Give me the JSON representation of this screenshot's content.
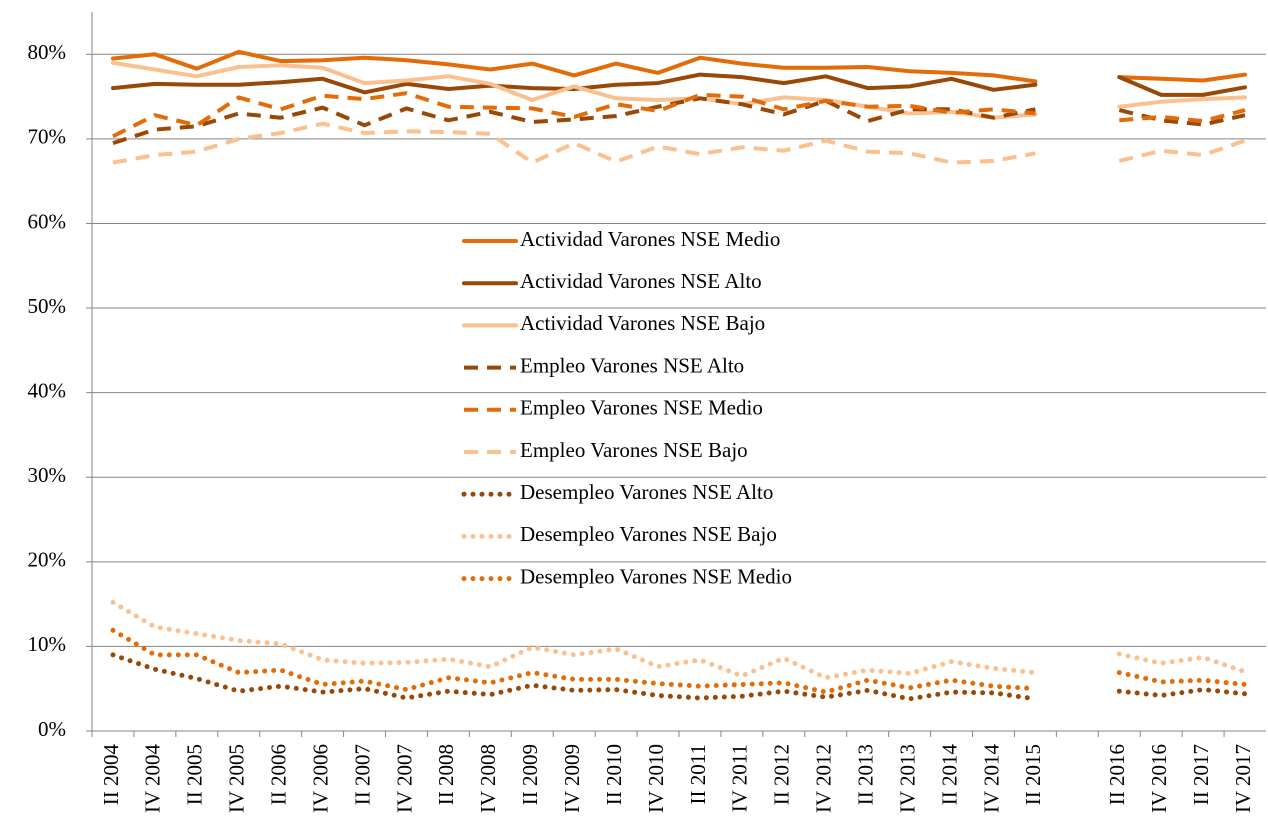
{
  "chart_data": {
    "type": "line",
    "categories": [
      "II 2004",
      "IV 2004",
      "II 2005",
      "IV 2005",
      "II 2006",
      "IV 2006",
      "II 2007",
      "IV 2007",
      "II 2008",
      "IV 2008",
      "II 2009",
      "IV 2009",
      "II 2010",
      "IV 2010",
      "II 2011",
      "IV 2011",
      "II 2012",
      "IV 2012",
      "II 2013",
      "IV 2013",
      "II 2014",
      "IV 2014",
      "II 2015",
      null,
      "II 2016",
      "IV 2016",
      "II 2017",
      "IV 2017"
    ],
    "series": [
      {
        "name": "Actividad Varones NSE Medio",
        "color": "#e36c09",
        "dash": "solid",
        "values": [
          79.5,
          80,
          78.3,
          80.3,
          79.2,
          79.3,
          79.6,
          79.3,
          78.8,
          78.2,
          78.9,
          77.5,
          78.9,
          77.8,
          79.6,
          78.9,
          78.4,
          78.4,
          78.5,
          78,
          77.8,
          77.5,
          76.8,
          null,
          77.3,
          77.1,
          76.9,
          77.6
        ]
      },
      {
        "name": "Actividad Varones NSE Alto",
        "color": "#984807",
        "dash": "solid",
        "values": [
          76,
          76.5,
          76.4,
          76.4,
          76.7,
          77.1,
          75.5,
          76.5,
          75.9,
          76.3,
          76,
          75.9,
          76.4,
          76.6,
          77.6,
          77.3,
          76.6,
          77.4,
          76,
          76.2,
          77.1,
          75.8,
          76.4,
          null,
          77.3,
          75.2,
          75.2,
          76.1
        ]
      },
      {
        "name": "Actividad Varones NSE Bajo",
        "color": "#fac08f",
        "dash": "solid",
        "values": [
          79,
          78.2,
          77.4,
          78.5,
          78.7,
          78.4,
          76.6,
          76.9,
          77.4,
          76.5,
          74.6,
          76.2,
          74.8,
          74.6,
          74.8,
          74.1,
          74.9,
          74.6,
          73.8,
          73,
          73.2,
          72.5,
          72.9,
          null,
          73.8,
          74.4,
          74.7,
          74.9
        ]
      },
      {
        "name": "Empleo Varones NSE Alto",
        "color": "#984807",
        "dash": "dashed",
        "values": [
          69.5,
          71.1,
          71.5,
          73,
          72.5,
          73.7,
          71.6,
          73.6,
          72.2,
          73.2,
          72,
          72.3,
          72.7,
          73.8,
          74.8,
          74.1,
          72.9,
          74.5,
          72.1,
          73.5,
          73.5,
          72.5,
          73.5,
          null,
          73.4,
          72.2,
          71.7,
          72.8
        ]
      },
      {
        "name": "Empleo Varones NSE Medio",
        "color": "#e36c09",
        "dash": "dashed",
        "values": [
          70.3,
          72.8,
          71.6,
          74.9,
          73.5,
          75.1,
          74.7,
          75.4,
          73.8,
          73.7,
          73.6,
          72.6,
          74.1,
          73.3,
          75.2,
          75,
          73.5,
          74.5,
          73.8,
          73.9,
          73.1,
          73.5,
          73,
          null,
          72.2,
          72.6,
          72.1,
          73.4
        ]
      },
      {
        "name": "Empleo Varones NSE Bajo",
        "color": "#fac08f",
        "dash": "dashed",
        "values": [
          67.2,
          68.1,
          68.5,
          70,
          70.7,
          71.8,
          70.7,
          70.9,
          70.8,
          70.6,
          67.2,
          69.5,
          67.3,
          69.1,
          68.2,
          69,
          68.6,
          69.8,
          68.5,
          68.3,
          67.2,
          67.4,
          68.3,
          null,
          67.4,
          68.6,
          68.1,
          69.8
        ]
      },
      {
        "name": "Desempleo Varones NSE Alto",
        "color": "#984807",
        "dash": "dotted",
        "values": [
          9,
          7.3,
          6.2,
          4.7,
          5.3,
          4.6,
          5,
          3.9,
          4.7,
          4.3,
          5.4,
          4.8,
          4.9,
          4.2,
          3.9,
          4.1,
          4.7,
          4,
          4.8,
          3.8,
          4.6,
          4.5,
          3.8,
          null,
          4.7,
          4.2,
          4.9,
          4.4
        ]
      },
      {
        "name": "Desempleo Varones NSE Bajo",
        "color": "#fac08f",
        "dash": "dotted",
        "values": [
          15.2,
          12.3,
          11.5,
          10.7,
          10.3,
          8.4,
          8,
          8.1,
          8.5,
          7.6,
          9.9,
          9,
          9.7,
          7.6,
          8.4,
          6.5,
          8.6,
          6.3,
          7.2,
          6.8,
          8.2,
          7.4,
          6.9,
          null,
          9.1,
          8,
          8.7,
          7
        ]
      },
      {
        "name": "Desempleo Varones NSE Medio",
        "color": "#e36c09",
        "dash": "dotted",
        "values": [
          11.9,
          9,
          9,
          6.9,
          7.2,
          5.5,
          5.9,
          4.9,
          6.3,
          5.7,
          6.9,
          6.1,
          6.1,
          5.6,
          5.3,
          5.5,
          5.7,
          4.6,
          6,
          5.1,
          6,
          5.3,
          5,
          null,
          6.9,
          5.8,
          6,
          5.5
        ]
      }
    ],
    "ylim": [
      0,
      85
    ],
    "yticks": [
      {
        "value": 0,
        "label": "0%"
      },
      {
        "value": 10,
        "label": "10%"
      },
      {
        "value": 20,
        "label": "20%"
      },
      {
        "value": 30,
        "label": "30%"
      },
      {
        "value": 40,
        "label": "40%"
      },
      {
        "value": 50,
        "label": "50%"
      },
      {
        "value": 60,
        "label": "60%"
      },
      {
        "value": 70,
        "label": "70%"
      },
      {
        "value": 80,
        "label": "80%"
      }
    ],
    "grid": true
  }
}
